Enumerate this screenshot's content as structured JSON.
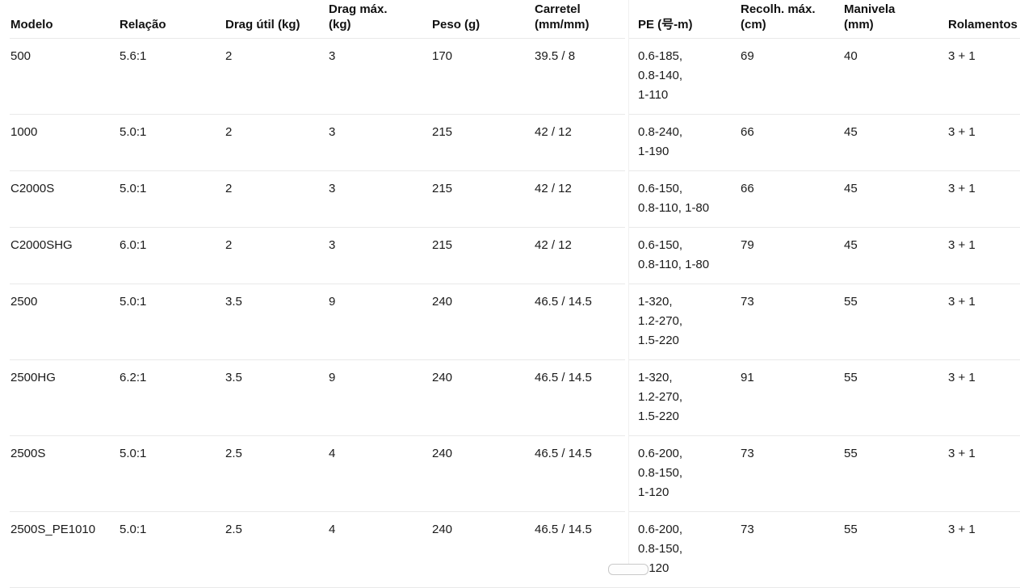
{
  "page": {
    "background": "#ffffff",
    "text_color": "#1a1a1a",
    "header_color": "#111111",
    "border_color": "#e9e9e9"
  },
  "table": {
    "columns": [
      {
        "key": "modelo",
        "label": "Modelo"
      },
      {
        "key": "relacao",
        "label": "Relação"
      },
      {
        "key": "drag_util",
        "label": "Drag útil (kg)"
      },
      {
        "key": "drag_max",
        "label": "Drag máx.\n(kg)"
      },
      {
        "key": "peso",
        "label": "Peso (g)"
      },
      {
        "key": "carretel",
        "label": "Carretel\n(mm/mm)"
      },
      {
        "key": "pe",
        "label": "PE (号-m)"
      },
      {
        "key": "recolh_max",
        "label": "Recolh. máx.\n(cm)"
      },
      {
        "key": "manivela",
        "label": "Manivela\n(mm)"
      },
      {
        "key": "rolamentos",
        "label": "Rolamentos"
      }
    ],
    "rows": [
      {
        "modelo": "500",
        "relacao": "5.6:1",
        "drag_util": "2",
        "drag_max": "3",
        "peso": "170",
        "carretel": "39.5 / 8",
        "pe": [
          "0.6-185,",
          "0.8-140,",
          "1-110"
        ],
        "recolh_max": "69",
        "manivela": "40",
        "rolamentos": "3 + 1"
      },
      {
        "modelo": "1000",
        "relacao": "5.0:1",
        "drag_util": "2",
        "drag_max": "3",
        "peso": "215",
        "carretel": "42 / 12",
        "pe": [
          "0.8-240,",
          "1-190"
        ],
        "recolh_max": "66",
        "manivela": "45",
        "rolamentos": "3 + 1"
      },
      {
        "modelo": "C2000S",
        "relacao": "5.0:1",
        "drag_util": "2",
        "drag_max": "3",
        "peso": "215",
        "carretel": "42 / 12",
        "pe": [
          "0.6-150,",
          "0.8-110, 1-80"
        ],
        "recolh_max": "66",
        "manivela": "45",
        "rolamentos": "3 + 1"
      },
      {
        "modelo": "C2000SHG",
        "relacao": "6.0:1",
        "drag_util": "2",
        "drag_max": "3",
        "peso": "215",
        "carretel": "42 / 12",
        "pe": [
          "0.6-150,",
          "0.8-110, 1-80"
        ],
        "recolh_max": "79",
        "manivela": "45",
        "rolamentos": "3 + 1"
      },
      {
        "modelo": "2500",
        "relacao": "5.0:1",
        "drag_util": "3.5",
        "drag_max": "9",
        "peso": "240",
        "carretel": "46.5 / 14.5",
        "pe": [
          "1-320,",
          "1.2-270,",
          "1.5-220"
        ],
        "recolh_max": "73",
        "manivela": "55",
        "rolamentos": "3 + 1"
      },
      {
        "modelo": "2500HG",
        "relacao": "6.2:1",
        "drag_util": "3.5",
        "drag_max": "9",
        "peso": "240",
        "carretel": "46.5 / 14.5",
        "pe": [
          "1-320,",
          "1.2-270,",
          "1.5-220"
        ],
        "recolh_max": "91",
        "manivela": "55",
        "rolamentos": "3 + 1"
      },
      {
        "modelo": "2500S",
        "relacao": "5.0:1",
        "drag_util": "2.5",
        "drag_max": "4",
        "peso": "240",
        "carretel": "46.5 / 14.5",
        "pe": [
          "0.6-200,",
          "0.8-150,",
          "1-120"
        ],
        "recolh_max": "73",
        "manivela": "55",
        "rolamentos": "3 + 1"
      },
      {
        "modelo": "2500S_PE1010",
        "relacao": "5.0:1",
        "drag_util": "2.5",
        "drag_max": "4",
        "peso": "240",
        "carretel": "46.5 / 14.5",
        "pe": [
          "0.6-200,",
          "0.8-150,",
          "1-120"
        ],
        "recolh_max": "73",
        "manivela": "55",
        "rolamentos": "3 + 1"
      }
    ]
  }
}
